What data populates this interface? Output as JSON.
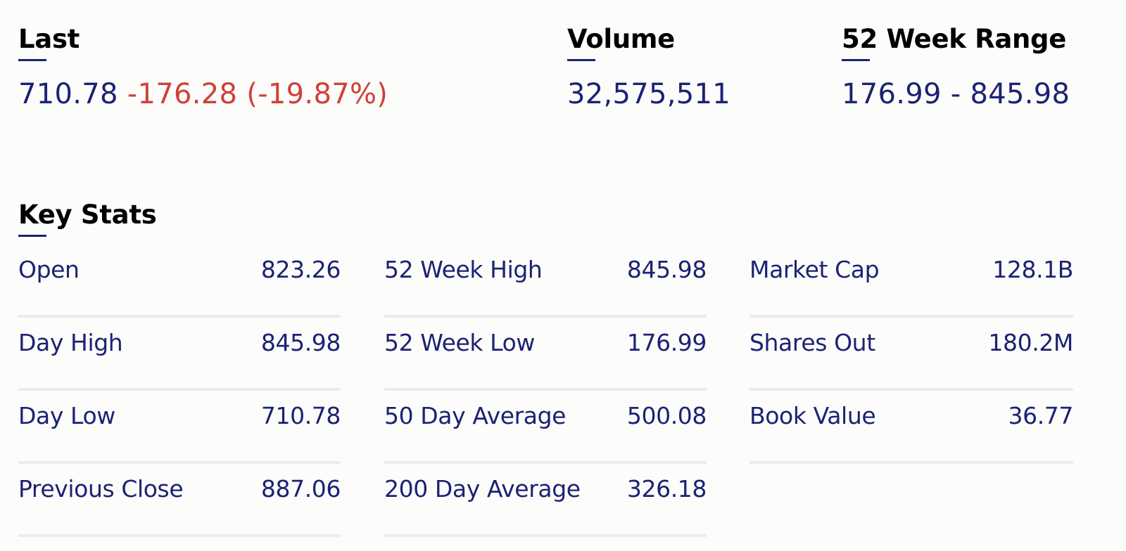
{
  "summary": {
    "last": {
      "heading": "Last",
      "price": "710.78",
      "change": "-176.28",
      "change_percent": "(-19.87%)"
    },
    "volume": {
      "heading": "Volume",
      "value": "32,575,511"
    },
    "range_52_week": {
      "heading": "52 Week Range",
      "value": "176.99 - 845.98"
    }
  },
  "key_stats": {
    "heading": "Key Stats",
    "columns": [
      [
        {
          "label": "Open",
          "value": "823.26"
        },
        {
          "label": "Day High",
          "value": "845.98"
        },
        {
          "label": "Day Low",
          "value": "710.78"
        },
        {
          "label": "Previous Close",
          "value": "887.06"
        }
      ],
      [
        {
          "label": "52 Week High",
          "value": "845.98"
        },
        {
          "label": "52 Week Low",
          "value": "176.99"
        },
        {
          "label": "50 Day Average",
          "value": "500.08"
        },
        {
          "label": "200 Day Average",
          "value": "326.18"
        }
      ],
      [
        {
          "label": "Market Cap",
          "value": "128.1B"
        },
        {
          "label": "Shares Out",
          "value": "180.2M"
        },
        {
          "label": "Book Value",
          "value": "36.77"
        }
      ]
    ]
  },
  "colors": {
    "primary": "#1c2273",
    "negative": "#cf4137",
    "divider": "#ececec"
  }
}
